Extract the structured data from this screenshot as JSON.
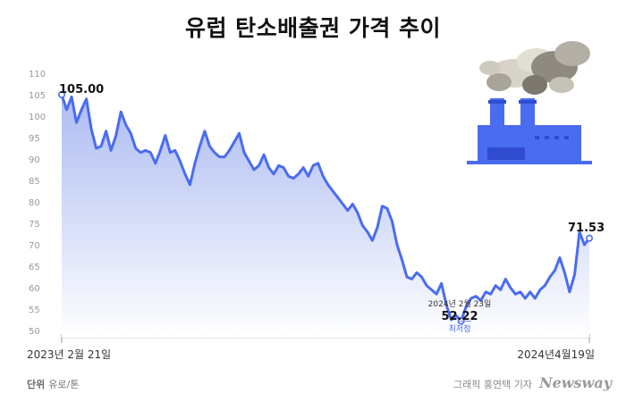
{
  "title": "유럽 탄소배출권 가격 추이",
  "unit_label": "단위",
  "unit_value": "유로/톤",
  "credit": "그래픽 홍연택 기자",
  "brand": "Newsway",
  "colors": {
    "line": "#4a6cf0",
    "area_top": "#9fb0f0",
    "area_bottom": "#ffffff",
    "tick": "#999999",
    "grid": "#e8e8e8"
  },
  "chart_data": {
    "type": "area",
    "ylim": [
      50,
      110
    ],
    "yticks": [
      50,
      55,
      60,
      65,
      70,
      75,
      80,
      85,
      90,
      95,
      100,
      105,
      110
    ],
    "xlabels": [
      "2023년 2월 21일",
      "2024년4월19일"
    ],
    "x": [
      0,
      4,
      8,
      12,
      16,
      20,
      24,
      28,
      32,
      36,
      40,
      44,
      48,
      52,
      56,
      60,
      64,
      68,
      72,
      76,
      80,
      84,
      88,
      92,
      96,
      100,
      104,
      108,
      112,
      116,
      120,
      124,
      128,
      132,
      136,
      140,
      144,
      148,
      152,
      156,
      160,
      164,
      168,
      172,
      176,
      180,
      184,
      188,
      192,
      196,
      200,
      204,
      208,
      212,
      216,
      220,
      224,
      228,
      232,
      236,
      240,
      244,
      248,
      252,
      256,
      260,
      264,
      268,
      272,
      276,
      280,
      284,
      288,
      292,
      296,
      300,
      304,
      308,
      312,
      316,
      320,
      324,
      328,
      332,
      336,
      340,
      344,
      348,
      352,
      356,
      360,
      364,
      368,
      372,
      376,
      380,
      384,
      388,
      392,
      396,
      400,
      404,
      408,
      412,
      416,
      420,
      424,
      428
    ],
    "values": [
      105.0,
      101.5,
      104.5,
      98.5,
      101.5,
      104.0,
      97.0,
      92.5,
      93.0,
      96.5,
      92.0,
      95.5,
      101.0,
      98.0,
      96.0,
      92.5,
      91.5,
      92.0,
      91.5,
      89.0,
      92.0,
      95.5,
      91.5,
      92.0,
      89.5,
      86.5,
      84.0,
      89.0,
      93.0,
      96.5,
      93.0,
      91.5,
      90.5,
      90.5,
      92.0,
      94.0,
      96.0,
      91.5,
      89.5,
      87.5,
      88.5,
      91.0,
      88.0,
      86.5,
      88.5,
      88.0,
      86.0,
      85.5,
      86.5,
      88.0,
      86.0,
      88.5,
      89.0,
      86.0,
      84.0,
      82.5,
      81.0,
      79.5,
      78.0,
      79.5,
      77.5,
      74.5,
      73.0,
      71.0,
      74.0,
      79.0,
      78.5,
      75.5,
      70.0,
      66.5,
      62.5,
      62.0,
      63.5,
      62.5,
      60.5,
      59.5,
      58.5,
      61.0,
      56.0,
      52.5,
      53.5,
      52.2,
      55.5,
      57.5,
      58.0,
      57.0,
      59.0,
      58.5,
      60.5,
      59.5,
      62.0,
      60.0,
      58.5,
      59.0,
      57.5,
      59.0,
      57.5,
      59.5,
      60.5,
      62.5,
      64.0,
      67.0,
      63.5,
      59.0,
      63.0,
      73.0,
      70.0,
      71.53
    ],
    "annotations": {
      "start": {
        "value": "105.00",
        "index": 0
      },
      "end": {
        "value": "71.53",
        "index": 107
      },
      "low": {
        "date": "2024년 2월 23일",
        "value": "52.22",
        "label": "최저점",
        "index": 81
      }
    }
  }
}
